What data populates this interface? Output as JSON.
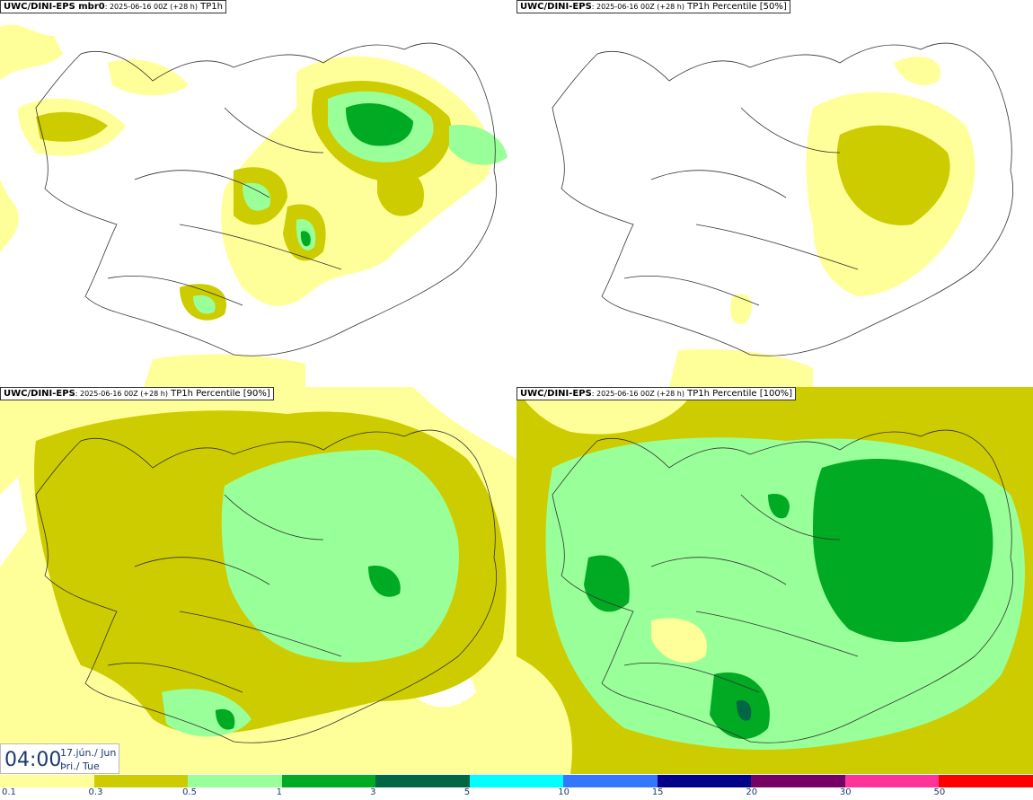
{
  "panels": [
    {
      "model": "UWC/DINI-EPS",
      "suffix": " mbr0",
      "info": ": 2025-06-16 00Z (+28 h)",
      "param": " TP1h"
    },
    {
      "model": "UWC/DINI-EPS",
      "suffix": "",
      "info": ": 2025-06-16 00Z (+28 h)",
      "param": " TP1h Percentile [50%]"
    },
    {
      "model": "UWC/DINI-EPS",
      "suffix": "",
      "info": ": 2025-06-16 00Z (+28 h)",
      "param": " TP1h Percentile [90%]"
    },
    {
      "model": "UWC/DINI-EPS",
      "suffix": "",
      "info": ": 2025-06-16 00Z (+28 h)",
      "param": " TP1h Percentile [100%]"
    }
  ],
  "valid_time": {
    "time": "04:00",
    "date_line1": "17.jún./ Jun",
    "date_line2": "Þri./ Tue"
  },
  "colorscale": {
    "labels": [
      "0.1",
      "0.3",
      "0.5",
      "1",
      "3",
      "5",
      "10",
      "15",
      "20",
      "30",
      "50"
    ],
    "colors": [
      "#ffff99",
      "#cccc00",
      "#99ff99",
      "#00aa22",
      "#006644",
      "#00ffff",
      "#3377ff",
      "#000088",
      "#770066",
      "#ff3399",
      "#ff0000"
    ]
  }
}
